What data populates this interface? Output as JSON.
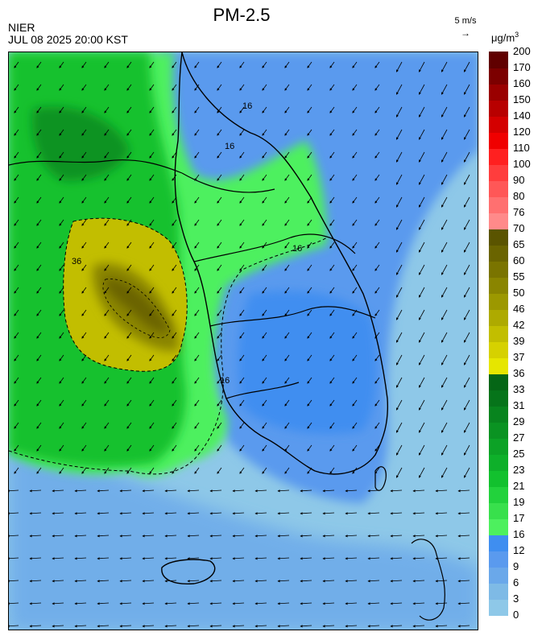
{
  "header": {
    "title": "PM-2.5",
    "organization": "NIER",
    "timestamp": "JUL 08 2025 20:00 KST",
    "wind_scale_label": "5 m/s",
    "wind_scale_arrow": "→",
    "unit_base": "μg/m",
    "unit_exp": "3"
  },
  "contour_labels": [
    {
      "text": "16"
    },
    {
      "text": "16"
    },
    {
      "text": "16"
    },
    {
      "text": "36"
    },
    {
      "text": "16"
    }
  ],
  "legend": {
    "levels": [
      "0",
      "3",
      "6",
      "9",
      "12",
      "16",
      "17",
      "19",
      "21",
      "23",
      "25",
      "27",
      "29",
      "31",
      "33",
      "36",
      "37",
      "39",
      "42",
      "46",
      "50",
      "55",
      "60",
      "65",
      "70",
      "76",
      "80",
      "90",
      "100",
      "110",
      "120",
      "140",
      "150",
      "160",
      "170",
      "200"
    ],
    "colors": [
      "#8ec8e8",
      "#7ebae6",
      "#6aa8ea",
      "#5a9aee",
      "#3f8ef0",
      "#4df05e",
      "#38e04c",
      "#22d23c",
      "#12c12e",
      "#0eb02a",
      "#0ca226",
      "#0a9322",
      "#08841e",
      "#06741a",
      "#056616",
      "#e6e600",
      "#d6d100",
      "#c2be00",
      "#aeaa00",
      "#9c9800",
      "#8a8500",
      "#7a7400",
      "#6a6400",
      "#5a5400",
      "#ff8a8a",
      "#ff7070",
      "#ff5757",
      "#ff3d3d",
      "#ff2020",
      "#f00000",
      "#d40000",
      "#b80000",
      "#9a0000",
      "#7c0000",
      "#600000"
    ]
  },
  "wind": {
    "direction": "northeasterly",
    "flow_toward": "southwest"
  }
}
